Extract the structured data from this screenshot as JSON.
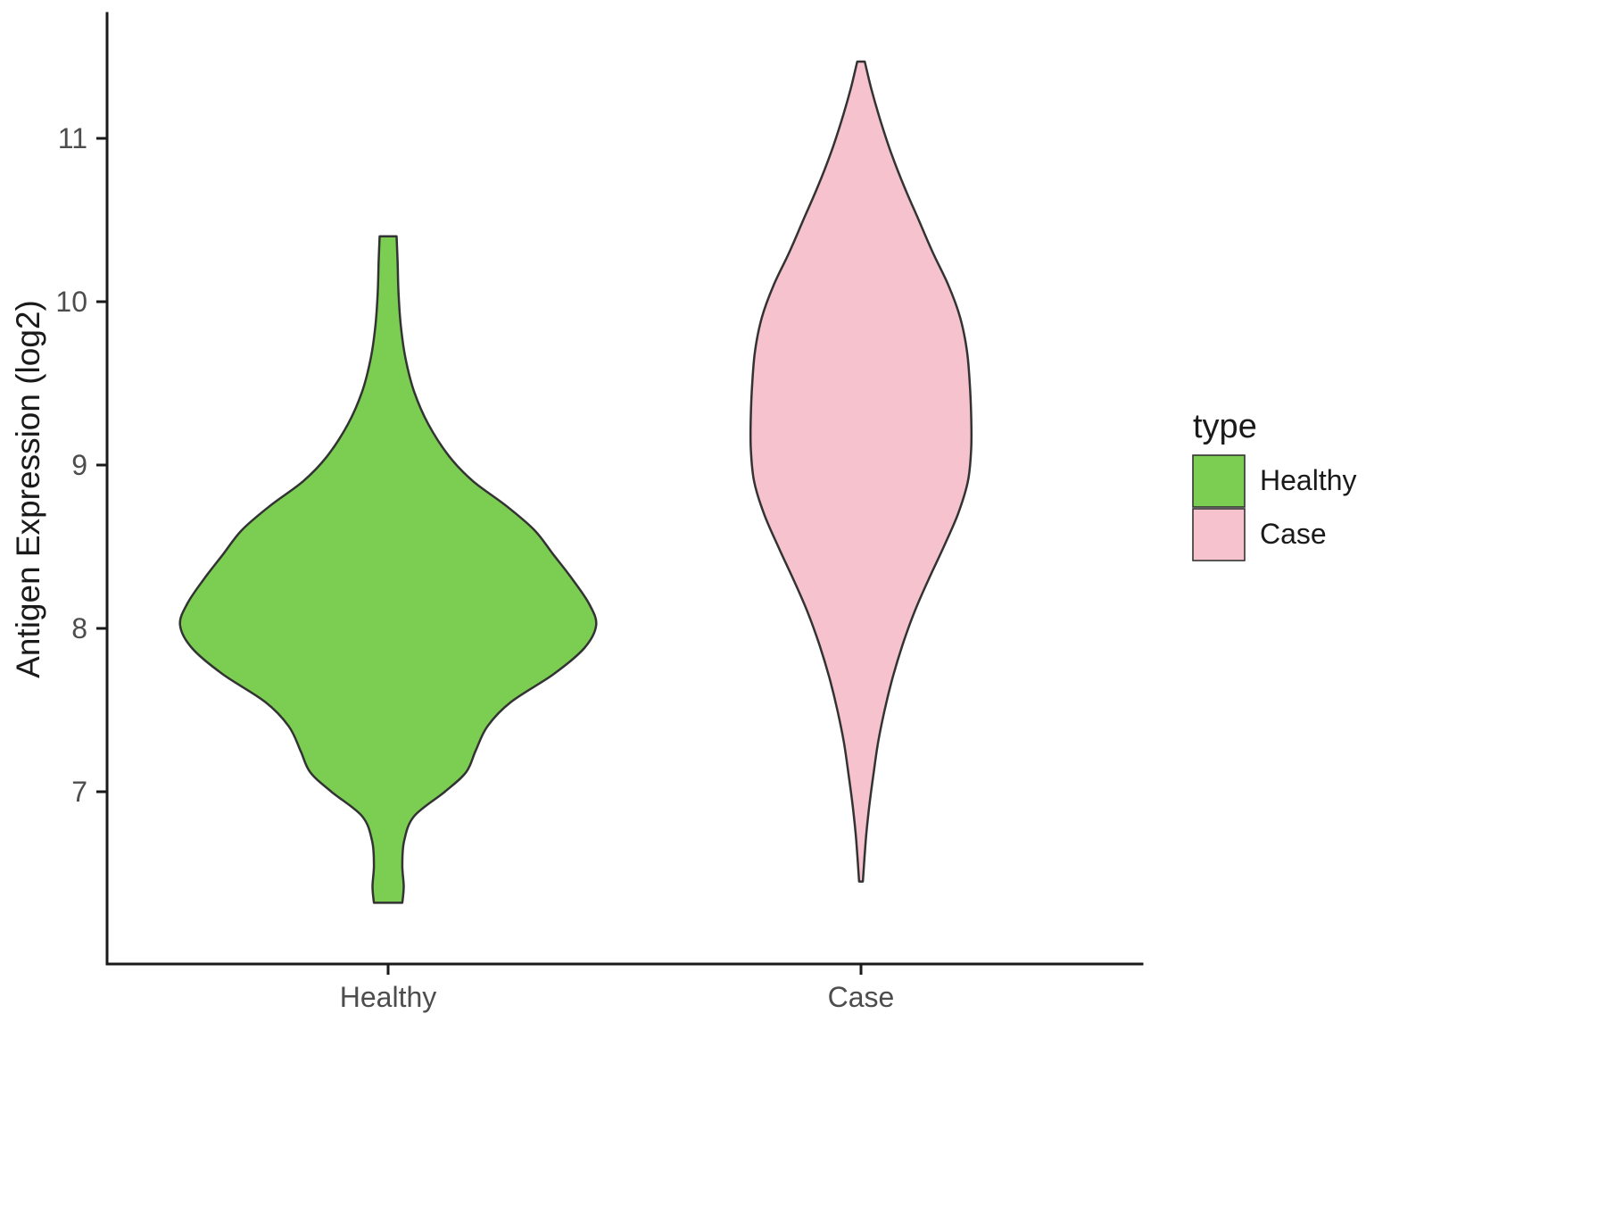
{
  "chart_data": {
    "type": "violin",
    "title": "",
    "xlabel": "",
    "ylabel": "Antigen Expression (log2)",
    "categories": [
      "Healthy",
      "Case"
    ],
    "y_ticks": [
      7,
      8,
      9,
      10,
      11
    ],
    "ylim": [
      6.0,
      11.75
    ],
    "grid": "off",
    "legend": {
      "title": "type",
      "position": "right",
      "entries": [
        {
          "label": "Healthy",
          "color": "#7CCE52"
        },
        {
          "label": "Case",
          "color": "#F5C2CE"
        }
      ]
    },
    "style": {
      "outline_color": "#333333",
      "axis_color": "#1a1a1a",
      "text_color": "#4d4d4d",
      "background": "#ffffff"
    },
    "series": [
      {
        "name": "Healthy",
        "fill": "#7CCE52",
        "value_range": [
          6.32,
          10.4
        ],
        "peak_value": 8.05,
        "profile": [
          [
            10.4,
            0.018
          ],
          [
            10.25,
            0.02
          ],
          [
            10.05,
            0.022
          ],
          [
            9.85,
            0.027
          ],
          [
            9.65,
            0.037
          ],
          [
            9.45,
            0.055
          ],
          [
            9.25,
            0.085
          ],
          [
            9.05,
            0.13
          ],
          [
            8.9,
            0.18
          ],
          [
            8.75,
            0.25
          ],
          [
            8.6,
            0.31
          ],
          [
            8.45,
            0.35
          ],
          [
            8.3,
            0.39
          ],
          [
            8.15,
            0.425
          ],
          [
            8.02,
            0.44
          ],
          [
            7.88,
            0.415
          ],
          [
            7.72,
            0.35
          ],
          [
            7.55,
            0.26
          ],
          [
            7.4,
            0.21
          ],
          [
            7.25,
            0.185
          ],
          [
            7.12,
            0.165
          ],
          [
            7.0,
            0.12
          ],
          [
            6.85,
            0.055
          ],
          [
            6.7,
            0.034
          ],
          [
            6.55,
            0.03
          ],
          [
            6.42,
            0.033
          ],
          [
            6.32,
            0.03
          ]
        ]
      },
      {
        "name": "Case",
        "fill": "#F5C2CE",
        "value_range": [
          6.45,
          11.47
        ],
        "peak_value": 9.2,
        "profile": [
          [
            11.47,
            0.008
          ],
          [
            11.3,
            0.022
          ],
          [
            11.1,
            0.042
          ],
          [
            10.9,
            0.065
          ],
          [
            10.7,
            0.092
          ],
          [
            10.5,
            0.122
          ],
          [
            10.3,
            0.152
          ],
          [
            10.1,
            0.185
          ],
          [
            9.9,
            0.21
          ],
          [
            9.7,
            0.224
          ],
          [
            9.5,
            0.23
          ],
          [
            9.3,
            0.233
          ],
          [
            9.1,
            0.233
          ],
          [
            8.9,
            0.226
          ],
          [
            8.7,
            0.205
          ],
          [
            8.5,
            0.175
          ],
          [
            8.3,
            0.143
          ],
          [
            8.1,
            0.113
          ],
          [
            7.9,
            0.088
          ],
          [
            7.7,
            0.067
          ],
          [
            7.5,
            0.05
          ],
          [
            7.3,
            0.036
          ],
          [
            7.1,
            0.026
          ],
          [
            6.9,
            0.017
          ],
          [
            6.7,
            0.01
          ],
          [
            6.45,
            0.004
          ]
        ]
      }
    ]
  }
}
